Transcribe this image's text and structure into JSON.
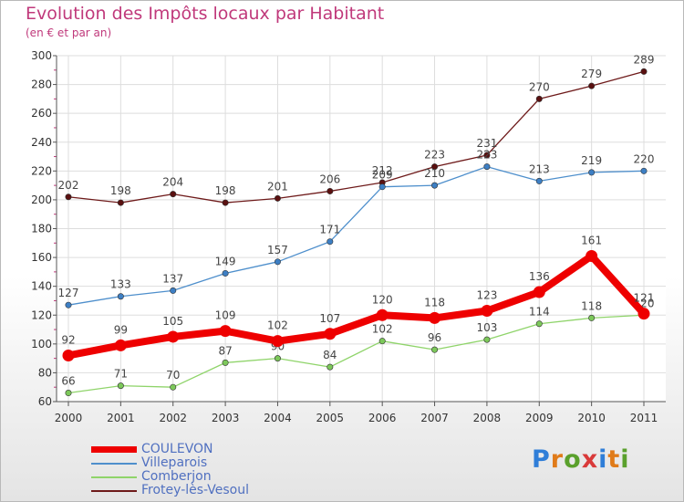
{
  "title": "Evolution des Impôts locaux par Habitant",
  "subtitle": "(en € et par an)",
  "logo": {
    "letters": [
      "P",
      "r",
      "o",
      "x",
      "i",
      "t",
      "i"
    ],
    "colors": [
      "#2f7ed8",
      "#e07b19",
      "#5aa02c",
      "#d93a3a",
      "#2f7ed8",
      "#e07b19",
      "#5aa02c"
    ]
  },
  "chart_data": {
    "type": "line",
    "title": "Evolution des Impôts locaux par Habitant",
    "ylabel": "(en € et par an)",
    "x": [
      "2000",
      "2001",
      "2002",
      "2003",
      "2004",
      "2005",
      "2006",
      "2007",
      "2008",
      "2009",
      "2010",
      "2011"
    ],
    "ylim": [
      60,
      300
    ],
    "yticks": [
      "60",
      "80",
      "100",
      "120",
      "140",
      "160",
      "180",
      "200",
      "220",
      "240",
      "260",
      "280",
      "300"
    ],
    "series": [
      {
        "key": "frotey",
        "name": "Frotey-lès-Vesoul",
        "color": "#6e1a1a",
        "values": [
          202,
          198,
          204,
          198,
          201,
          206,
          212,
          223,
          231,
          270,
          279,
          289
        ],
        "labels": [
          "202",
          "198",
          "204",
          "198",
          "201",
          "206",
          "212",
          "223",
          "231",
          "270",
          "279",
          "289"
        ]
      },
      {
        "key": "villeparois",
        "name": "Villeparois",
        "color": "#4e8fcc",
        "values": [
          127,
          133,
          137,
          149,
          157,
          171,
          209,
          210,
          223,
          213,
          219,
          220
        ],
        "labels": [
          "127",
          "133",
          "137",
          "149",
          "157",
          "171",
          "209",
          "210",
          "223",
          "213",
          "219",
          "220"
        ]
      },
      {
        "key": "comberjon",
        "name": "Comberjon",
        "color": "#8fd46a",
        "values": [
          66,
          71,
          70,
          87,
          90,
          84,
          102,
          96,
          103,
          114,
          118,
          120
        ],
        "labels": [
          "66",
          "71",
          "70",
          "87",
          "90",
          "84",
          "102",
          "96",
          "103",
          "114",
          "118",
          "120"
        ]
      },
      {
        "key": "coulevon",
        "name": "COULEVON",
        "color": "#ee0000",
        "values": [
          92,
          99,
          105,
          109,
          102,
          107,
          120,
          118,
          123,
          136,
          161,
          121
        ],
        "labels": [
          "92",
          "99",
          "105",
          "109",
          "102",
          "107",
          "120",
          "118",
          "123",
          "136",
          "161",
          "121"
        ]
      }
    ],
    "legend": [
      "COULEVON",
      "Villeparois",
      "Comberjon",
      "Frotey-lès-Vesoul"
    ]
  }
}
